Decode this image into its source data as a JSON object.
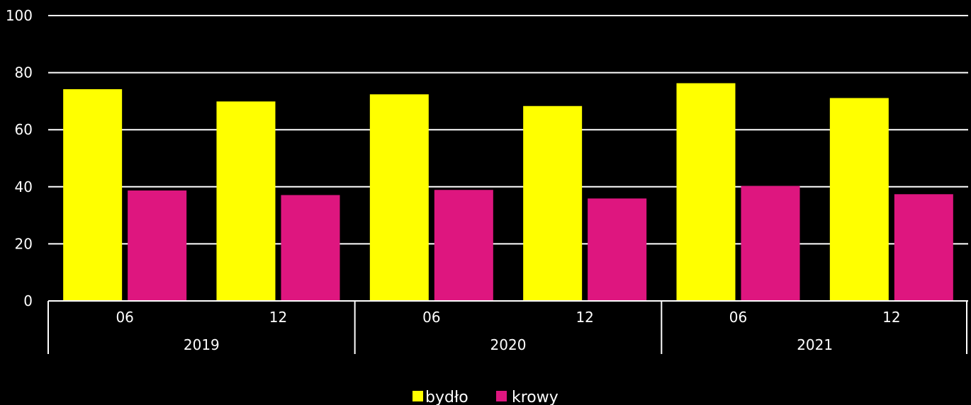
{
  "chart_data": {
    "type": "bar",
    "title": "",
    "xlabel": "",
    "ylabel": "",
    "ylim": [
      0,
      100
    ],
    "yticks": [
      "0",
      "20",
      "40",
      "60",
      "80",
      "100"
    ],
    "grid": true,
    "legend_position": "bottom",
    "groups": [
      {
        "label": "2019",
        "categories": [
          "06",
          "12"
        ]
      },
      {
        "label": "2020",
        "categories": [
          "06",
          "12"
        ]
      },
      {
        "label": "2021",
        "categories": [
          "06",
          "12"
        ]
      }
    ],
    "categories": [
      "06",
      "12",
      "06",
      "12",
      "06",
      "12"
    ],
    "series": [
      {
        "name": "bydło",
        "color": "#FFFF00",
        "values": [
          74.2,
          69.9,
          72.4,
          68.3,
          76.3,
          71.1
        ]
      },
      {
        "name": "krowy",
        "color": "#DE167F",
        "values": [
          38.7,
          37.1,
          38.9,
          35.9,
          40.3,
          37.4
        ]
      }
    ]
  }
}
